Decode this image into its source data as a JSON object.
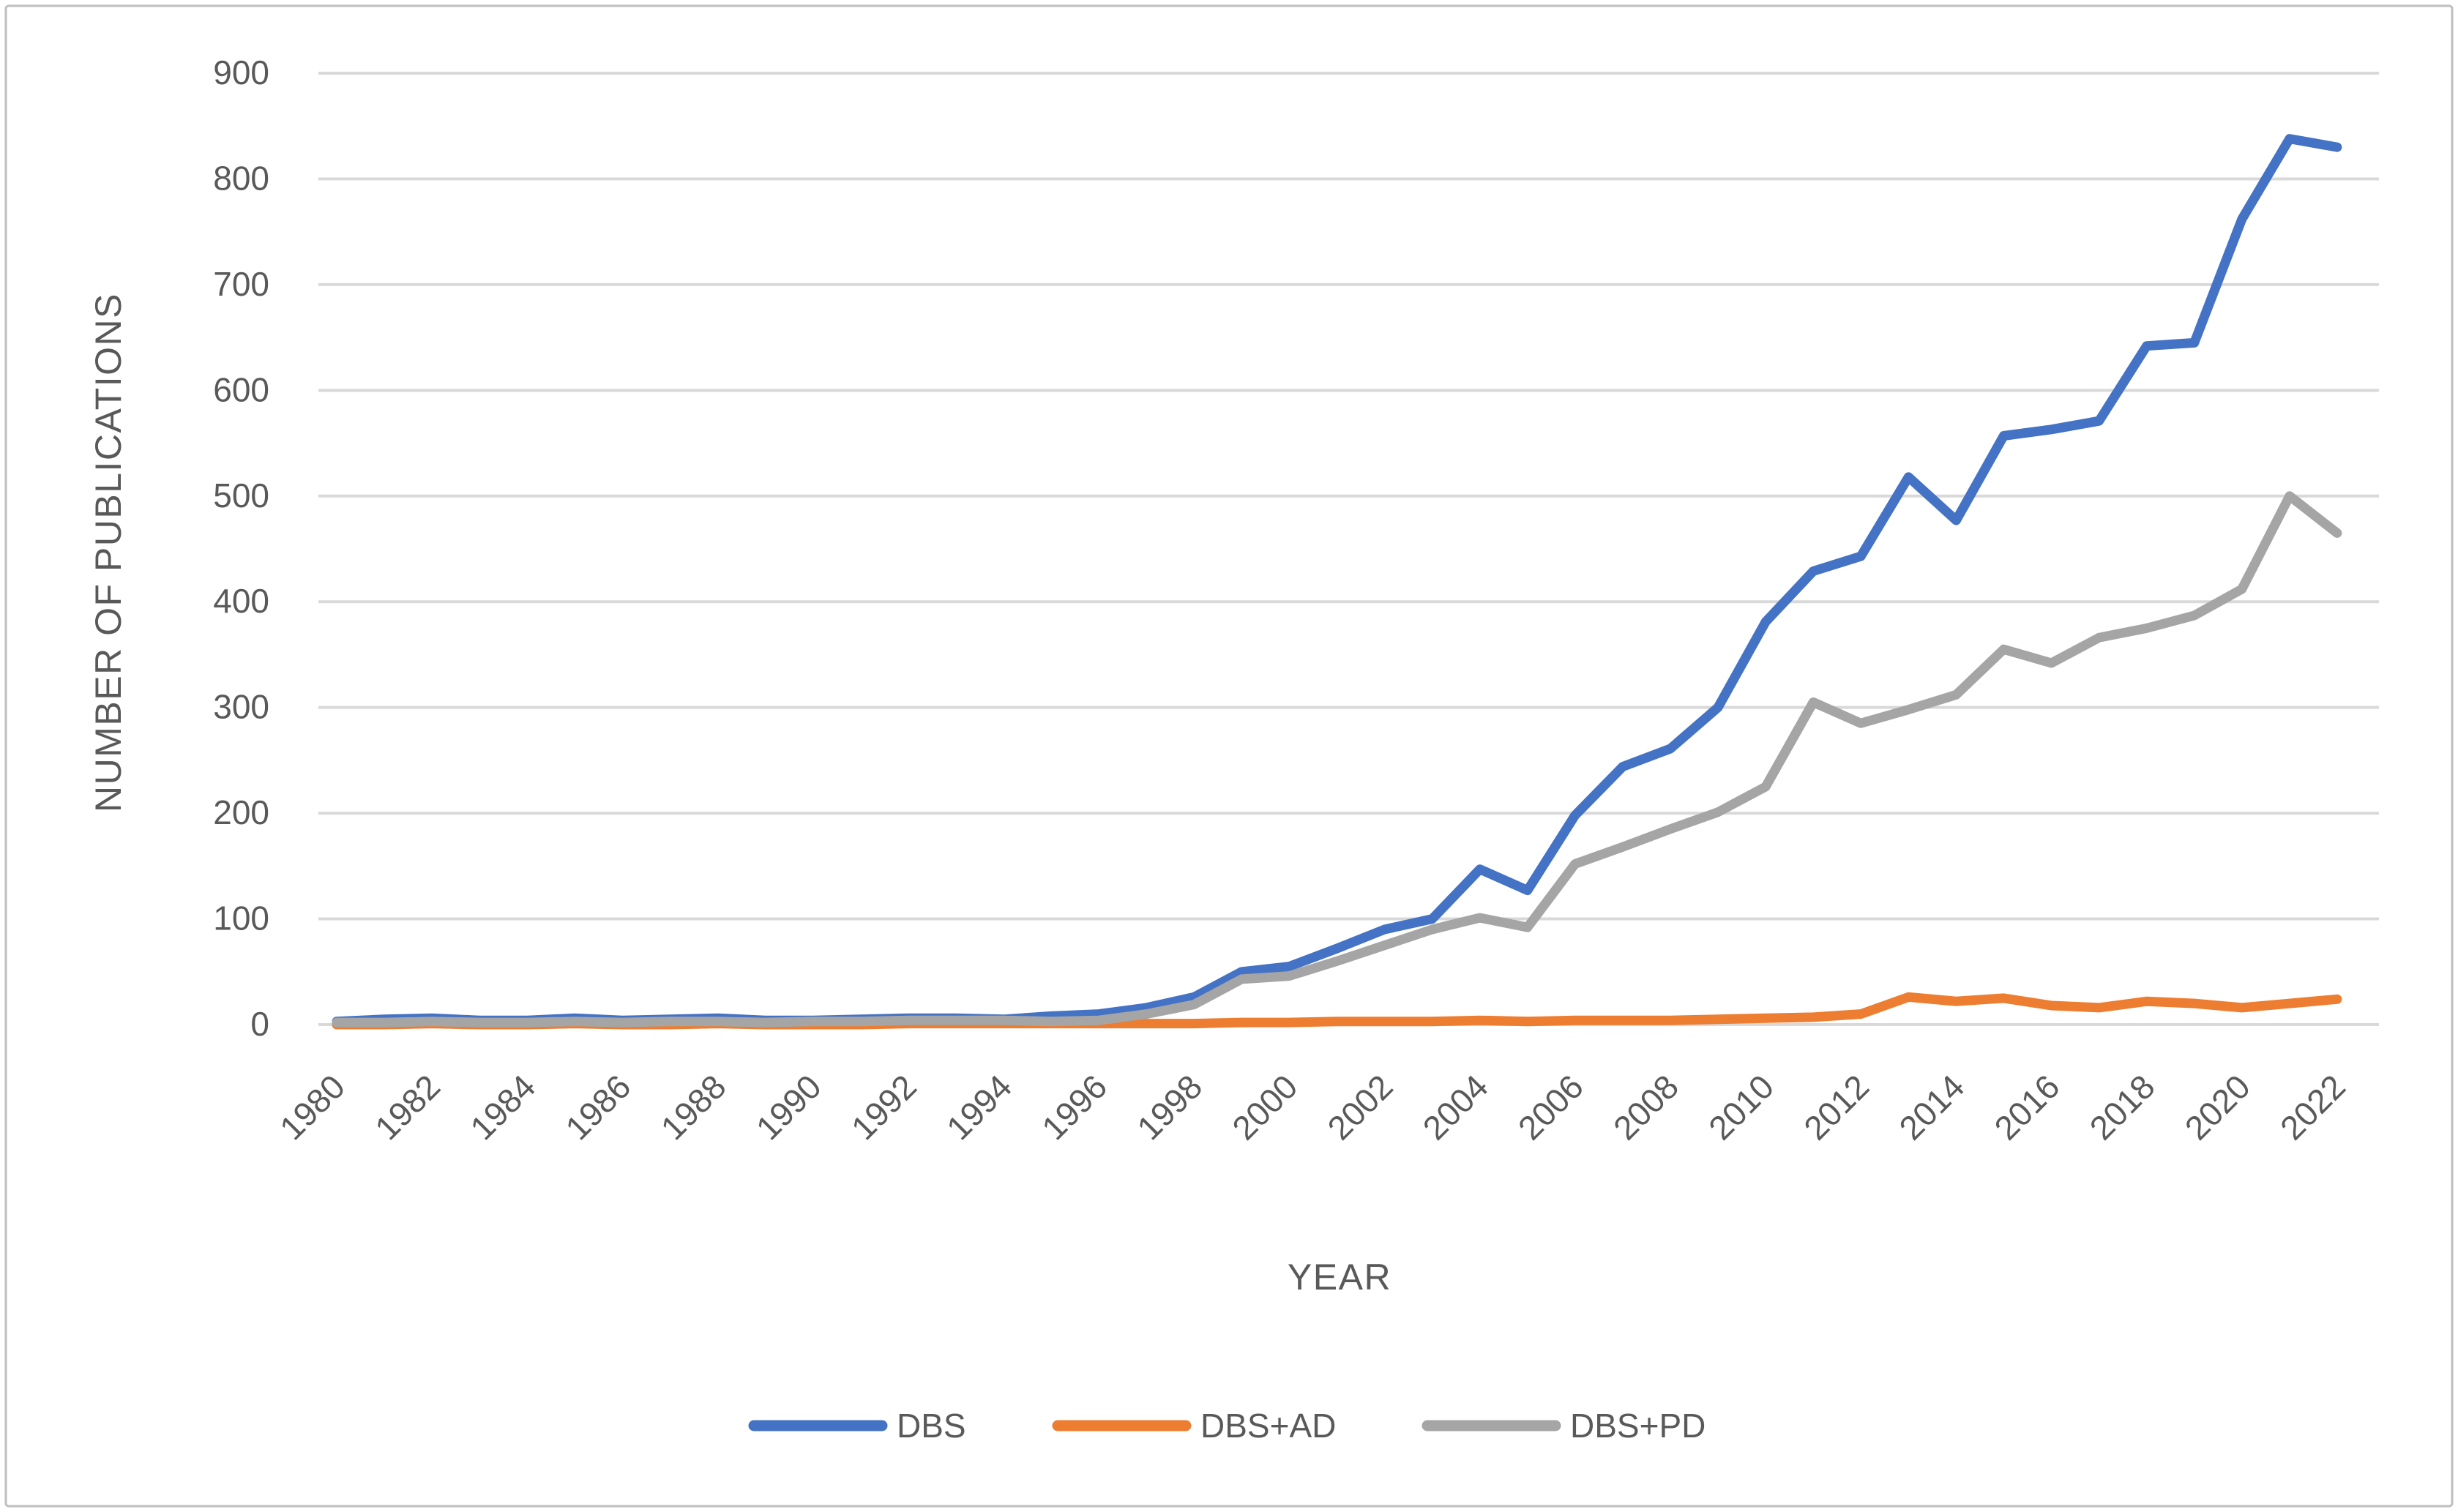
{
  "chart_data": {
    "type": "line",
    "title": "",
    "xlabel": "YEAR",
    "ylabel": "NUMBER OF PUBLICATIONS",
    "grid": true,
    "legend_position": "bottom",
    "ylim": [
      0,
      900
    ],
    "ytick_step": 100,
    "yticks": [
      "0",
      "100",
      "200",
      "300",
      "400",
      "500",
      "600",
      "700",
      "800",
      "900"
    ],
    "xticks": [
      "1980",
      "1982",
      "1984",
      "1986",
      "1988",
      "1990",
      "1992",
      "1994",
      "1996",
      "1998",
      "2000",
      "2002",
      "2004",
      "2006",
      "2008",
      "2010",
      "2012",
      "2014",
      "2016",
      "2018",
      "2020",
      "2022"
    ],
    "x": [
      1980,
      1981,
      1982,
      1983,
      1984,
      1985,
      1986,
      1987,
      1988,
      1989,
      1990,
      1991,
      1992,
      1993,
      1994,
      1995,
      1996,
      1997,
      1998,
      1999,
      2000,
      2001,
      2002,
      2003,
      2004,
      2005,
      2006,
      2007,
      2008,
      2009,
      2010,
      2011,
      2012,
      2013,
      2014,
      2015,
      2016,
      2017,
      2018,
      2019,
      2020,
      2021,
      2022
    ],
    "series": [
      {
        "name": "DBS",
        "color": "#4472C4",
        "values": [
          3,
          5,
          6,
          4,
          4,
          6,
          4,
          5,
          6,
          4,
          4,
          5,
          6,
          6,
          5,
          8,
          10,
          16,
          26,
          50,
          55,
          72,
          90,
          100,
          147,
          127,
          198,
          244,
          261,
          300,
          381,
          429,
          443,
          518,
          477,
          557,
          563,
          571,
          642,
          645,
          762,
          838,
          830
        ]
      },
      {
        "name": "DBS+AD",
        "color": "#ED7D31",
        "values": [
          0,
          0,
          1,
          0,
          0,
          1,
          0,
          0,
          1,
          0,
          0,
          0,
          1,
          1,
          1,
          1,
          1,
          1,
          1,
          2,
          2,
          3,
          3,
          3,
          4,
          3,
          4,
          4,
          4,
          5,
          6,
          7,
          10,
          26,
          22,
          25,
          18,
          16,
          22,
          20,
          16,
          20,
          24
        ]
      },
      {
        "name": "DBS+PD",
        "color": "#A5A5A5",
        "values": [
          2,
          2,
          3,
          2,
          2,
          3,
          2,
          3,
          3,
          2,
          3,
          3,
          4,
          4,
          4,
          3,
          4,
          10,
          19,
          43,
          46,
          60,
          75,
          90,
          101,
          92,
          152,
          168,
          185,
          201,
          225,
          305,
          285,
          298,
          312,
          355,
          342,
          366,
          375,
          387,
          412,
          500,
          465
        ]
      }
    ],
    "colors": {
      "gridline": "#D9D9D9",
      "axis_text": "#595959",
      "frame_border": "#BFBFBF",
      "background": "#FFFFFF"
    }
  }
}
